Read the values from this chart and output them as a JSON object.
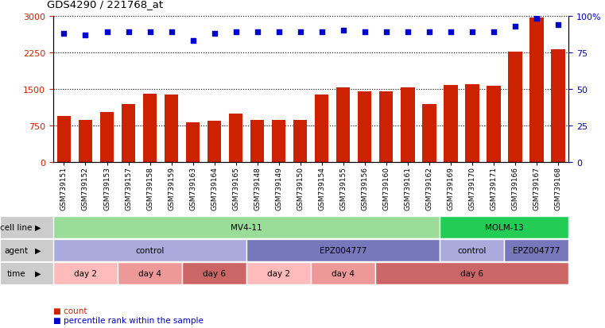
{
  "title": "GDS4290 / 221768_at",
  "samples": [
    "GSM739151",
    "GSM739152",
    "GSM739153",
    "GSM739157",
    "GSM739158",
    "GSM739159",
    "GSM739163",
    "GSM739164",
    "GSM739165",
    "GSM739148",
    "GSM739149",
    "GSM739150",
    "GSM739154",
    "GSM739155",
    "GSM739156",
    "GSM739160",
    "GSM739161",
    "GSM739162",
    "GSM739169",
    "GSM739170",
    "GSM739171",
    "GSM739166",
    "GSM739167",
    "GSM739168"
  ],
  "counts": [
    950,
    860,
    1020,
    1180,
    1400,
    1390,
    820,
    850,
    1000,
    870,
    870,
    870,
    1390,
    1530,
    1450,
    1440,
    1530,
    1190,
    1580,
    1590,
    1560,
    2260,
    2960,
    2310
  ],
  "percentiles": [
    88,
    87,
    89,
    89,
    89,
    89,
    83,
    88,
    89,
    89,
    89,
    89,
    89,
    90,
    89,
    89,
    89,
    89,
    89,
    89,
    89,
    93,
    98,
    94
  ],
  "bar_color": "#cc2200",
  "dot_color": "#0000cc",
  "ylim_left": [
    0,
    3000
  ],
  "ylim_right": [
    0,
    100
  ],
  "yticks_left": [
    0,
    750,
    1500,
    2250,
    3000
  ],
  "yticks_right": [
    0,
    25,
    50,
    75,
    100
  ],
  "cell_line_groups": [
    {
      "label": "MV4-11",
      "start": 0,
      "end": 18,
      "color": "#99dd99"
    },
    {
      "label": "MOLM-13",
      "start": 18,
      "end": 24,
      "color": "#22cc55"
    }
  ],
  "agent_groups": [
    {
      "label": "control",
      "start": 0,
      "end": 9,
      "color": "#aaaadd"
    },
    {
      "label": "EPZ004777",
      "start": 9,
      "end": 18,
      "color": "#7777bb"
    },
    {
      "label": "control",
      "start": 18,
      "end": 21,
      "color": "#aaaadd"
    },
    {
      "label": "EPZ004777",
      "start": 21,
      "end": 24,
      "color": "#7777bb"
    }
  ],
  "time_groups": [
    {
      "label": "day 2",
      "start": 0,
      "end": 3,
      "color": "#ffbbbb"
    },
    {
      "label": "day 4",
      "start": 3,
      "end": 6,
      "color": "#ee9999"
    },
    {
      "label": "day 6",
      "start": 6,
      "end": 9,
      "color": "#cc6666"
    },
    {
      "label": "day 2",
      "start": 9,
      "end": 12,
      "color": "#ffbbbb"
    },
    {
      "label": "day 4",
      "start": 12,
      "end": 15,
      "color": "#ee9999"
    },
    {
      "label": "day 6",
      "start": 15,
      "end": 24,
      "color": "#cc6666"
    }
  ],
  "row_labels": [
    "cell line",
    "agent",
    "time"
  ],
  "label_bg": "#cccccc",
  "n_samples": 24
}
